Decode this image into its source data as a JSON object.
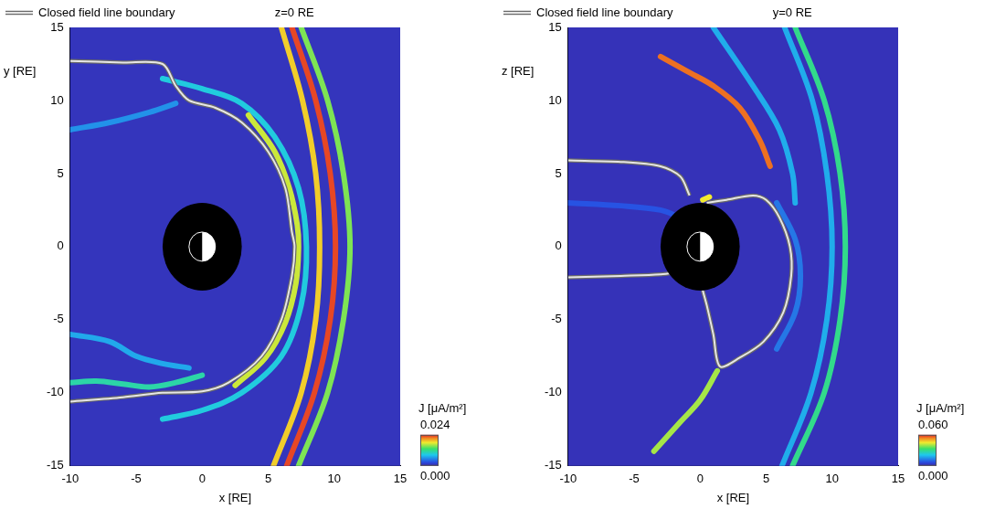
{
  "chart_data": [
    {
      "type": "line",
      "title": "z=0 RE",
      "x_label": "x [RE]",
      "y_label": "y [RE]",
      "xlim": [
        -10,
        15
      ],
      "xticks": [
        -10,
        -5,
        0,
        5,
        10,
        15
      ],
      "ylim": [
        -15,
        15
      ],
      "yticks": [
        -15,
        -10,
        -5,
        0,
        5,
        10,
        15
      ],
      "grid": false,
      "legend": "top-left",
      "inner_boundary_radius": 3,
      "earth_radius": 1,
      "background_value": 0.001,
      "colorbar": {
        "label": "J [μA/m²]",
        "range": [
          0,
          0.024
        ],
        "ticks": [
          {
            "value": 0,
            "label": "0.000"
          },
          {
            "value": 0.024,
            "label": "0.024"
          }
        ]
      },
      "current_sheets": [
        {
          "J": 0.017,
          "x": [
            3.5,
            5.5,
            6.6,
            7.2,
            7.3,
            7.1,
            6.3,
            4.8,
            2.5
          ],
          "y": [
            9,
            6.5,
            4,
            1.5,
            0,
            -2.5,
            -5.2,
            -7.6,
            -9.5
          ]
        },
        {
          "J": 0.019,
          "x": [
            6.0,
            7.6,
            8.6,
            8.9,
            8.6,
            7.5,
            5.4
          ],
          "y": [
            15,
            10,
            5,
            0,
            -5,
            -10,
            -15
          ]
        },
        {
          "J": 0.023,
          "x": [
            6.8,
            8.6,
            9.7,
            10.1,
            9.7,
            8.5,
            6.4
          ],
          "y": [
            15,
            10,
            5,
            0,
            -5,
            -10,
            -15
          ]
        },
        {
          "J": 0.015,
          "x": [
            7.5,
            9.5,
            10.7,
            11.2,
            10.7,
            9.5,
            7.3
          ],
          "y": [
            15,
            10,
            5,
            0,
            -5,
            -10,
            -15
          ]
        },
        {
          "J": 0.009,
          "x": [
            -3,
            0,
            3,
            5.5,
            7.3,
            7.9,
            7.5,
            6,
            3,
            0,
            -3
          ],
          "y": [
            11.5,
            10.8,
            9.8,
            7.5,
            4,
            0,
            -4,
            -7.5,
            -10,
            -11.2,
            -11.8
          ]
        },
        {
          "J": 0.011,
          "x": [
            -10,
            -8,
            -6,
            -4,
            -2,
            0
          ],
          "y": [
            -9.3,
            -9.2,
            -9.4,
            -9.6,
            -9.3,
            -8.8
          ]
        },
        {
          "J": 0.007,
          "x": [
            -10,
            -7,
            -5,
            -3,
            -1
          ],
          "y": [
            -6,
            -6.5,
            -7.5,
            -8,
            -8.3
          ]
        },
        {
          "J": 0.006,
          "x": [
            -10,
            -7,
            -4,
            -2
          ],
          "y": [
            8,
            8.5,
            9.2,
            9.8
          ]
        }
      ],
      "series": [
        {
          "name": "Closed field line boundary",
          "color": "#e6e6e6",
          "x": [
            -10,
            -6,
            -3,
            -2,
            -1,
            1,
            3,
            5,
            6.3,
            6.8,
            7,
            6.8,
            6,
            4.5,
            2,
            0,
            -3,
            -6,
            -10
          ],
          "values": [
            12.7,
            12.6,
            12.5,
            11,
            10,
            9.5,
            8.5,
            6.5,
            4,
            1,
            0,
            -2,
            -5,
            -7.5,
            -9.3,
            -9.9,
            -10,
            -10.3,
            -10.6
          ]
        }
      ]
    },
    {
      "type": "line",
      "title": "y=0 RE",
      "x_label": "x [RE]",
      "y_label": "z [RE]",
      "xlim": [
        -10,
        15
      ],
      "xticks": [
        -10,
        -5,
        0,
        5,
        10,
        15
      ],
      "ylim": [
        -15,
        15
      ],
      "yticks": [
        -15,
        -10,
        -5,
        0,
        5,
        10,
        15
      ],
      "grid": false,
      "legend": "top-left",
      "inner_boundary_radius": 3,
      "earth_radius": 1,
      "background_value": 0.002,
      "colorbar": {
        "label": "J [μA/m²]",
        "range": [
          0,
          0.06
        ],
        "ticks": [
          {
            "value": 0,
            "label": "0.000"
          },
          {
            "value": 0.06,
            "label": "0.060"
          }
        ]
      },
      "current_sheets": [
        {
          "J": 0.03,
          "x": [
            7.2,
            9.4,
            10.6,
            11.0,
            10.6,
            9.4,
            7.0
          ],
          "y": [
            15,
            10,
            5,
            0,
            -5,
            -10,
            -15
          ]
        },
        {
          "J": 0.018,
          "x": [
            6.4,
            8.5,
            9.6,
            10.0,
            9.6,
            8.4,
            6.2
          ],
          "y": [
            15,
            10,
            5,
            0,
            -5,
            -10,
            -15
          ]
        },
        {
          "J": 0.055,
          "x": [
            -3,
            -1,
            1,
            3,
            4.5,
            5.3
          ],
          "y": [
            13,
            12,
            11,
            9.5,
            7.3,
            5.5
          ]
        },
        {
          "J": 0.04,
          "x": [
            -3.5,
            -1.5,
            0,
            1.3
          ],
          "y": [
            -14,
            -12,
            -10.5,
            -8.5
          ]
        },
        {
          "J": 0.018,
          "x": [
            1,
            4,
            6,
            7,
            7.2
          ],
          "y": [
            15,
            11,
            8,
            5,
            3
          ]
        },
        {
          "J": 0.012,
          "x": [
            5.8,
            7.2,
            7.6,
            7.2,
            5.8
          ],
          "y": [
            3,
            0.5,
            -2,
            -4.5,
            -7
          ]
        },
        {
          "J": 0.045,
          "x": [
            0.2,
            0.7
          ],
          "y": [
            3.2,
            3.4
          ]
        },
        {
          "J": 0.008,
          "x": [
            -10,
            -6,
            -3,
            -1.5
          ],
          "y": [
            3,
            2.8,
            2.5,
            2
          ]
        }
      ],
      "series": [
        {
          "name": "Closed field line boundary",
          "color": "#e6e6e6",
          "x": [
            -10,
            -6,
            -3,
            -1.5,
            -0.8,
            null,
            0.5,
            2,
            4,
            5,
            6,
            6.8,
            6.9,
            6.3,
            4.8,
            3,
            1.5,
            1,
            0.5,
            0.2,
            null,
            -10,
            -6,
            -3,
            -1.5
          ],
          "values": [
            5.9,
            5.8,
            5.5,
            4.8,
            3.5,
            null,
            3.0,
            3.2,
            3.5,
            3.2,
            2,
            0,
            -2,
            -4.5,
            -6.5,
            -7.6,
            -8.2,
            -6,
            -4,
            -3,
            null,
            -2.1,
            -2,
            -1.9,
            -1.7
          ]
        }
      ]
    }
  ]
}
